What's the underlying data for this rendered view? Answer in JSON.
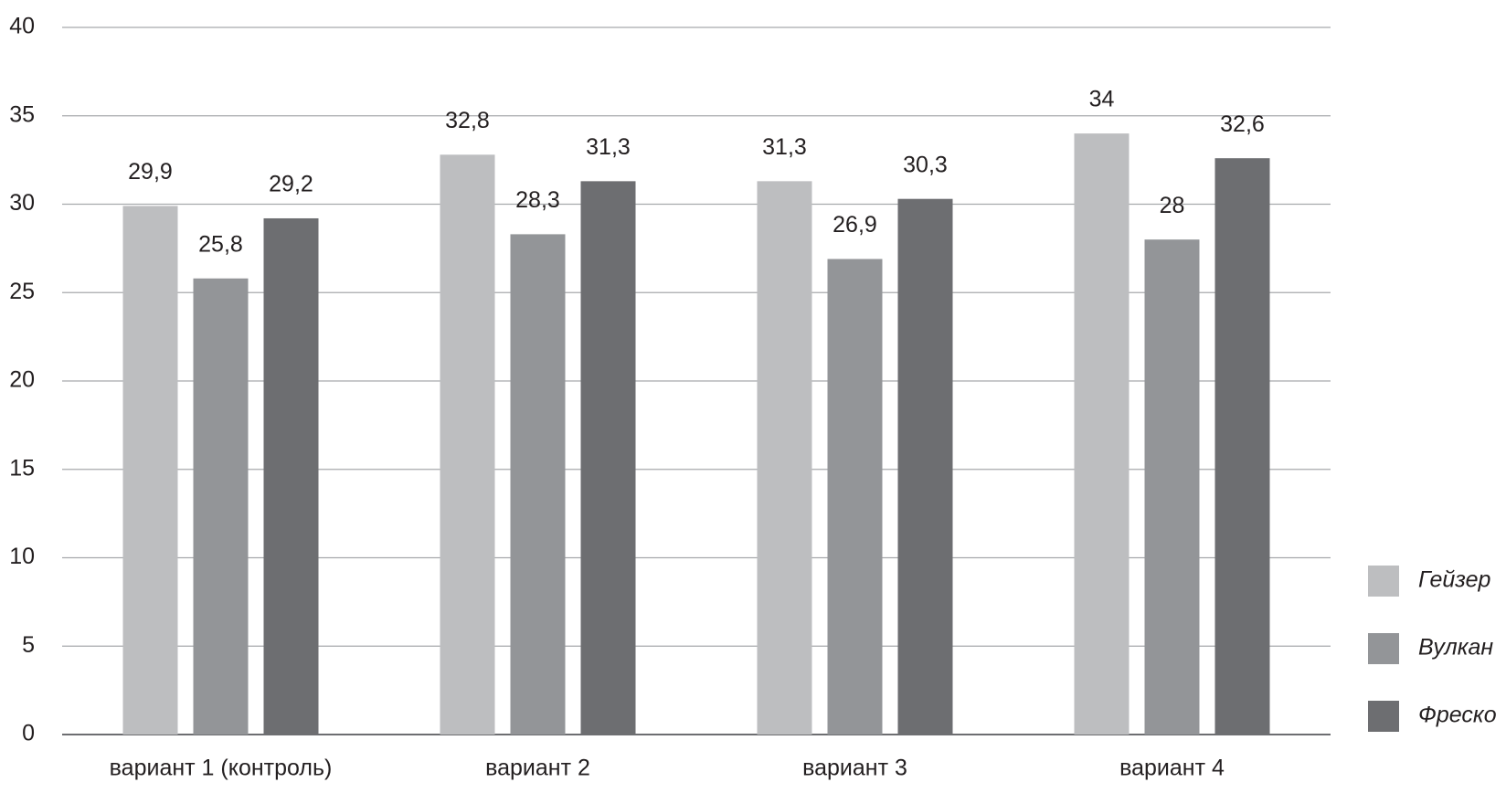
{
  "chart_data": {
    "type": "bar",
    "categories": [
      "вариант 1 (контроль)",
      "вариант 2",
      "вариант 3",
      "вариант 4"
    ],
    "series": [
      {
        "name": "Гейзер",
        "color": "#bdbec0",
        "values": [
          29.9,
          32.8,
          31.3,
          34
        ],
        "value_labels": [
          "29,9",
          "32,8",
          "31,3",
          "34"
        ]
      },
      {
        "name": "Вулкан",
        "color": "#939598",
        "values": [
          25.8,
          28.3,
          26.9,
          28
        ],
        "value_labels": [
          "25,8",
          "28,3",
          "26,9",
          "28"
        ]
      },
      {
        "name": "Фреско",
        "color": "#6d6e71",
        "values": [
          29.2,
          31.3,
          30.3,
          32.6
        ],
        "value_labels": [
          "29,2",
          "31,3",
          "30,3",
          "32,6"
        ]
      }
    ],
    "ylim": [
      0,
      40
    ],
    "yticks": [
      0,
      5,
      10,
      15,
      20,
      25,
      30,
      35,
      40
    ],
    "grid": true,
    "legend": "right"
  }
}
